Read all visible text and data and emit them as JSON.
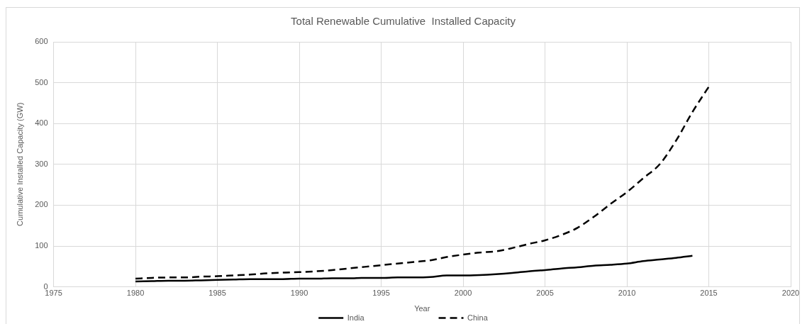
{
  "chart_data": {
    "type": "line",
    "title": "Total Renewable Cumulative  Installed Capacity",
    "xlabel": "Year",
    "ylabel": "Cumulative Installed Capacity (GW)",
    "x": [
      1980,
      1981,
      1982,
      1983,
      1984,
      1985,
      1986,
      1987,
      1988,
      1989,
      1990,
      1991,
      1992,
      1993,
      1994,
      1995,
      1996,
      1997,
      1998,
      1999,
      2000,
      2001,
      2002,
      2003,
      2004,
      2005,
      2006,
      2007,
      2008,
      2009,
      2010,
      2011,
      2012,
      2013,
      2014,
      2015
    ],
    "series": [
      {
        "name": "India",
        "color": "#000000",
        "line_style": "solid",
        "values": [
          13,
          14,
          15,
          15,
          16,
          17,
          18,
          19,
          19,
          19,
          20,
          20,
          21,
          21,
          22,
          22,
          23,
          23,
          24,
          28,
          28,
          29,
          31,
          34,
          38,
          41,
          45,
          48,
          52,
          54,
          57,
          63,
          67,
          71,
          76,
          null
        ]
      },
      {
        "name": "China",
        "color": "#000000",
        "line_style": "dashed",
        "values": [
          20,
          22,
          23,
          23,
          25,
          26,
          28,
          30,
          33,
          35,
          36,
          38,
          41,
          45,
          49,
          53,
          57,
          61,
          65,
          73,
          79,
          84,
          87,
          95,
          105,
          114,
          127,
          145,
          172,
          203,
          232,
          266,
          300,
          358,
          428,
          490
        ]
      }
    ],
    "xlim": [
      1975,
      2020
    ],
    "xticks": [
      1975,
      1980,
      1985,
      1990,
      1995,
      2000,
      2005,
      2010,
      2015,
      2020
    ],
    "ylim": [
      0,
      600
    ],
    "yticks": [
      0,
      100,
      200,
      300,
      400,
      500,
      600
    ],
    "grid": true,
    "legend": "bottom",
    "marker": "none"
  }
}
